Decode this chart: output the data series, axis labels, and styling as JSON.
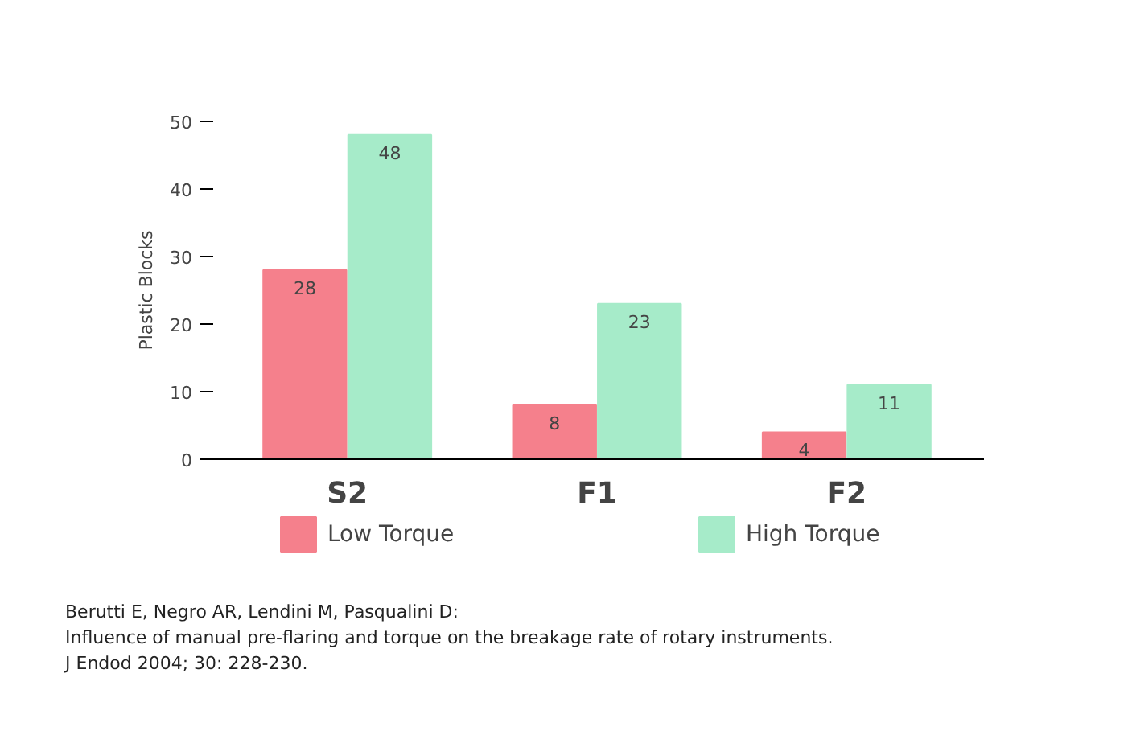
{
  "chart_data": {
    "type": "bar",
    "ylabel": "Plastic Blocks",
    "categories": [
      "S2",
      "F1",
      "F2"
    ],
    "series": [
      {
        "name": "Low Torque",
        "color": "#f5808c",
        "values": [
          28,
          8,
          4
        ]
      },
      {
        "name": "High Torque",
        "color": "#a6ebc9",
        "values": [
          48,
          23,
          11
        ]
      }
    ],
    "ylim": [
      0,
      50
    ],
    "yticks": [
      0,
      10,
      20,
      30,
      40,
      50
    ],
    "data_labels": true,
    "grid": false,
    "legend": "bottom",
    "annotations": [
      "Berutti E, Negro AR, Lendini M, Pasqualini D:",
      "Influence of manual pre-flaring and torque on the breakage rate of rotary instruments.",
      "J Endod 2004; 30: 228-230."
    ]
  }
}
